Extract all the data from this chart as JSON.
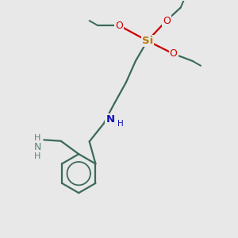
{
  "bg_color": "#e8e8e8",
  "bond_color": "#3a6a5a",
  "Si_color": "#bb7700",
  "O_color": "#cc0000",
  "N_color": "#1111bb",
  "NH2_color": "#5a8878",
  "line_width": 1.6,
  "figsize": [
    3.0,
    3.0
  ],
  "dpi": 100,
  "xlim": [
    0,
    10
  ],
  "ylim": [
    0,
    10
  ]
}
